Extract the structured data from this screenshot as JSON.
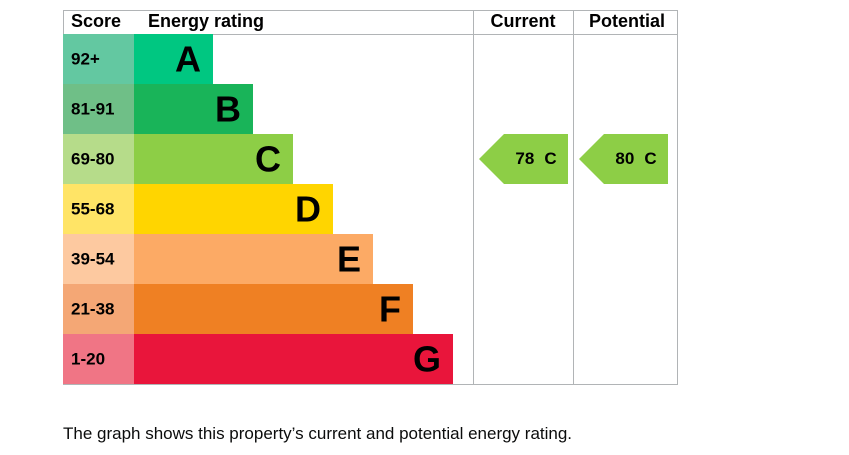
{
  "header": {
    "score": "Score",
    "rating": "Energy rating",
    "current": "Current",
    "potential": "Potential"
  },
  "bands": [
    {
      "range": "92+",
      "letter": "A",
      "color": "#00c781",
      "light": "#63c8a1"
    },
    {
      "range": "81-91",
      "letter": "B",
      "color": "#19b459",
      "light": "#6fbf87"
    },
    {
      "range": "69-80",
      "letter": "C",
      "color": "#8dce46",
      "light": "#b6dc8a"
    },
    {
      "range": "55-68",
      "letter": "D",
      "color": "#ffd500",
      "light": "#ffe466"
    },
    {
      "range": "39-54",
      "letter": "E",
      "color": "#fcaa65",
      "light": "#fdc9a0"
    },
    {
      "range": "21-38",
      "letter": "F",
      "color": "#ef8023",
      "light": "#f4a775"
    },
    {
      "range": "1-20",
      "letter": "G",
      "color": "#e9153b",
      "light": "#f07585"
    }
  ],
  "current": {
    "score": 78,
    "band": "C"
  },
  "potential": {
    "score": 80,
    "band": "C"
  },
  "caption": "The graph shows this property’s current and potential energy rating."
}
